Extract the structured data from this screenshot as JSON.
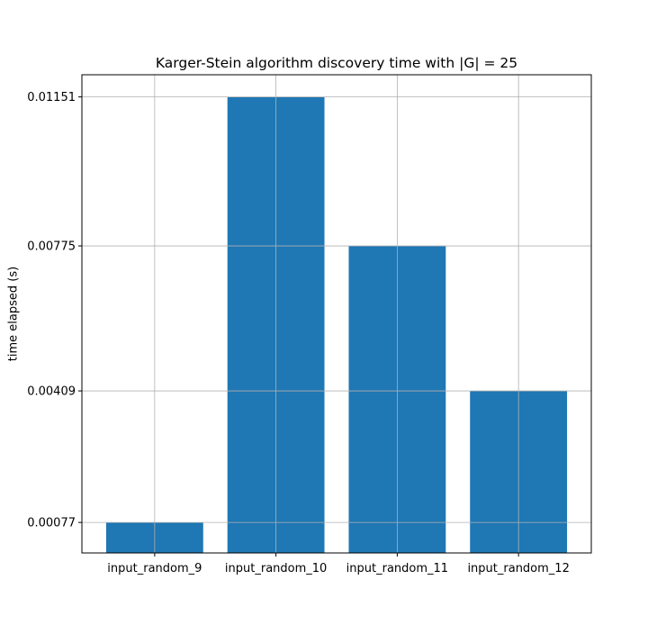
{
  "chart_data": {
    "type": "bar",
    "title": "Karger-Stein algorithm discovery time with |G| = 25",
    "xlabel": "",
    "ylabel": "time elapsed (s)",
    "categories": [
      "input_random_9",
      "input_random_10",
      "input_random_11",
      "input_random_12"
    ],
    "values": [
      0.00077,
      0.01151,
      0.00775,
      0.00409
    ],
    "yticks": [
      0.00077,
      0.00409,
      0.00775,
      0.01151
    ],
    "ytick_labels": [
      "0.00077",
      "0.00409",
      "0.00775",
      "0.01151"
    ],
    "ylim": [
      0.0,
      0.01207
    ],
    "grid": true,
    "legend": "none",
    "bar_color": "#1f77b4",
    "grid_color": "#b0b0b0"
  }
}
